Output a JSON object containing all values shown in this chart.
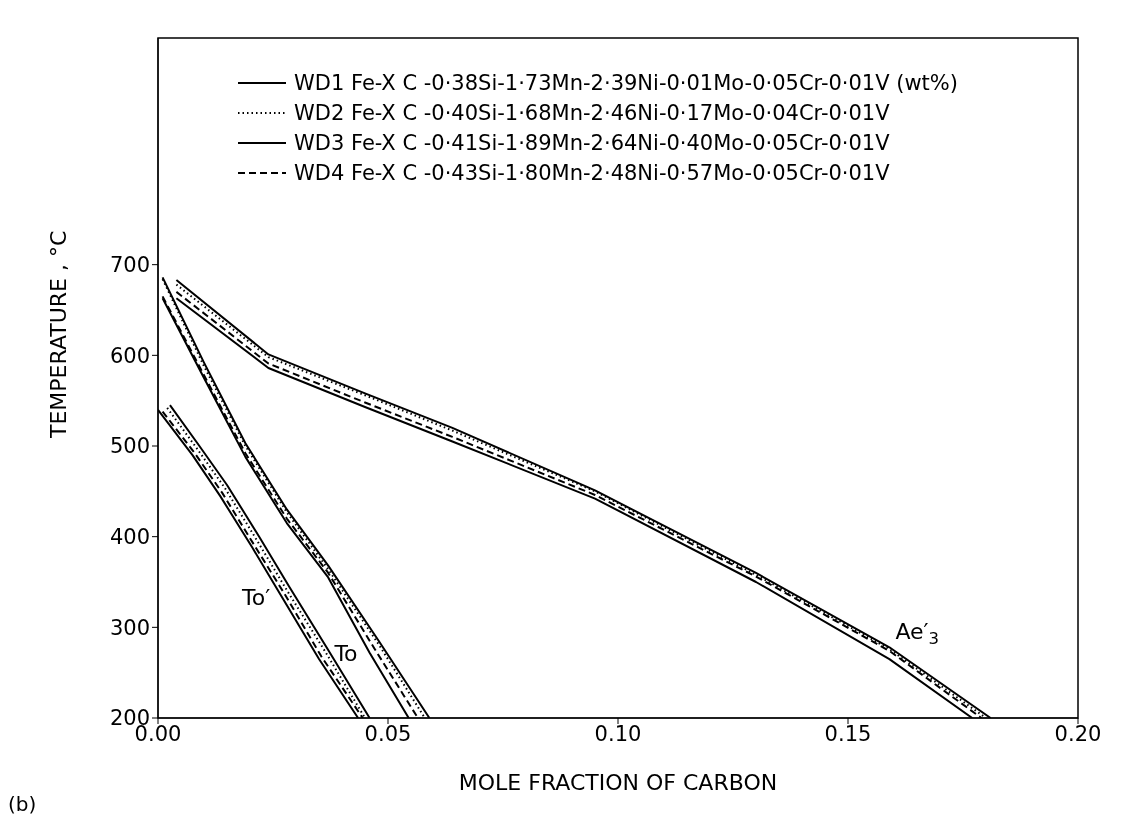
{
  "chart_data": {
    "type": "line",
    "xlabel": "MOLE FRACTION OF CARBON",
    "ylabel": "TEMPERATURE , °C",
    "xlim": [
      0,
      0.2
    ],
    "ylim": [
      200,
      950
    ],
    "xticks": [
      {
        "value": 0,
        "label": "0.00"
      },
      {
        "value": 0.05,
        "label": "0.05"
      },
      {
        "value": 0.1,
        "label": "0.10"
      },
      {
        "value": 0.15,
        "label": "0.15"
      },
      {
        "value": 0.2,
        "label": "0.20"
      }
    ],
    "yticks": [
      200,
      300,
      400,
      500,
      600,
      700
    ],
    "legend": "top",
    "marker": "none",
    "series": [
      {
        "name": "WD1 Fe-X C -0·38Si-1·73Mn-2·39Ni-0·01Mo-0·05Cr-0·01V (wt%)",
        "color": "#000000",
        "line_style": "solid",
        "x": [
          0.004,
          0.024,
          0.045,
          0.064,
          0.095,
          0.13,
          0.159,
          0.181
        ],
        "values": [
          683,
          601,
          558,
          520,
          451,
          360,
          278,
          200
        ]
      },
      {
        "name": "WD2 Fe-X C -0·40Si-1·68Mn-2·46Ni-0·17Mo-0·04Cr-0·01V",
        "color": "#000000",
        "line_style": "dotted",
        "x": [
          0.004,
          0.024,
          0.045,
          0.064,
          0.095,
          0.13,
          0.159,
          0.18
        ],
        "values": [
          678,
          598,
          556,
          517,
          450,
          358,
          276,
          200
        ]
      },
      {
        "name": "WD3 Fe-X C -0·41Si-1·89Mn-2·64Ni-0·40Mo-0·05Cr-0·01V",
        "color": "#000000",
        "line_style": "solid",
        "x": [
          0.004,
          0.024,
          0.045,
          0.064,
          0.095,
          0.13,
          0.159,
          0.177
        ],
        "values": [
          663,
          586,
          543,
          505,
          442,
          350,
          265,
          200
        ]
      },
      {
        "name": "WD4 Fe-X C -0·43Si-1·80Mn-2·48Ni-0·57Mo-0·05Cr-0·01V",
        "color": "#000000",
        "line_style": "dashed",
        "x": [
          0.004,
          0.024,
          0.045,
          0.064,
          0.095,
          0.13,
          0.159,
          0.179
        ],
        "values": [
          670,
          591,
          548,
          510,
          446,
          356,
          274,
          200
        ]
      },
      {
        "color": "#000000",
        "line_style": "solid",
        "x": [
          0.001,
          0.01,
          0.019,
          0.028,
          0.037,
          0.048,
          0.059
        ],
        "values": [
          686,
          592,
          503,
          430,
          368,
          285,
          200
        ]
      },
      {
        "color": "#000000",
        "line_style": "dotted",
        "x": [
          0.001,
          0.01,
          0.019,
          0.028,
          0.037,
          0.048,
          0.058
        ],
        "values": [
          684,
          588,
          500,
          427,
          364,
          281,
          200
        ]
      },
      {
        "color": "#000000",
        "line_style": "solid",
        "x": [
          0.001,
          0.01,
          0.019,
          0.028,
          0.037,
          0.046,
          0.0545
        ],
        "values": [
          663,
          575,
          488,
          415,
          355,
          272,
          200
        ]
      },
      {
        "color": "#000000",
        "line_style": "dashed",
        "x": [
          0.001,
          0.01,
          0.019,
          0.028,
          0.037,
          0.047,
          0.0565
        ],
        "values": [
          665,
          578,
          492,
          420,
          360,
          277,
          200
        ]
      },
      {
        "color": "#000000",
        "line_style": "solid",
        "x": [
          0.0026,
          0.009,
          0.015,
          0.022,
          0.0285,
          0.037,
          0.046
        ],
        "values": [
          545,
          500,
          457,
          400,
          345,
          275,
          200
        ]
      },
      {
        "color": "#000000",
        "line_style": "dotted",
        "x": [
          0.002,
          0.0085,
          0.0145,
          0.0215,
          0.028,
          0.0365,
          0.045
        ],
        "values": [
          542,
          497,
          454,
          396,
          341,
          272,
          200
        ]
      },
      {
        "color": "#000000",
        "line_style": "solid",
        "x": [
          0,
          0.0075,
          0.0135,
          0.0205,
          0.027,
          0.035,
          0.0435
        ],
        "values": [
          540,
          490,
          445,
          388,
          333,
          265,
          200
        ]
      },
      {
        "color": "#000000",
        "line_style": "dashed",
        "x": [
          0.001,
          0.008,
          0.014,
          0.021,
          0.0275,
          0.0355,
          0.0445
        ],
        "values": [
          538,
          492,
          448,
          390,
          337,
          268,
          200
        ]
      }
    ],
    "annotations": [
      {
        "text": "To′",
        "x": 0.027,
        "y": 333
      },
      {
        "text": "To",
        "x": 0.046,
        "y": 272
      },
      {
        "text": "Ae′$_{3}$",
        "x": 0.159,
        "y": 278
      },
      "(b)"
    ]
  }
}
